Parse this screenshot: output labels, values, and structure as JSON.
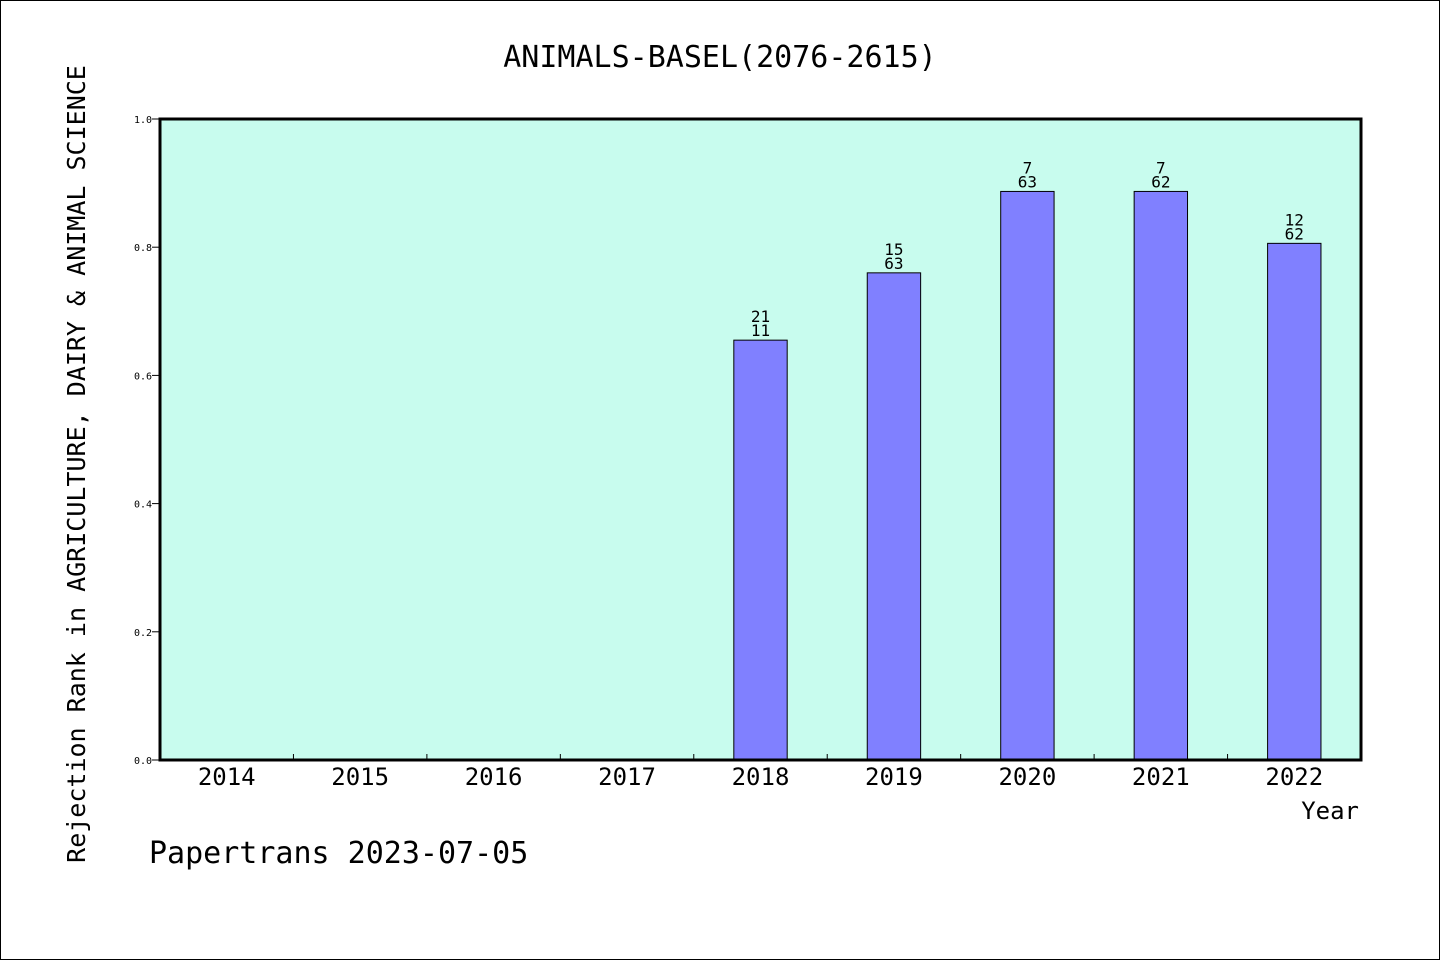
{
  "chart_data": {
    "type": "bar",
    "title": "ANIMALS-BASEL(2076-2615)",
    "xlabel": "Year",
    "ylabel": "Rejection Rank in AGRICULTURE, DAIRY & ANIMAL SCIENCE",
    "categories": [
      "2014",
      "2015",
      "2016",
      "2017",
      "2018",
      "2019",
      "2020",
      "2021",
      "2022"
    ],
    "values": [
      null,
      null,
      null,
      null,
      0.655,
      0.76,
      0.887,
      0.887,
      0.806
    ],
    "bar_labels": [
      null,
      null,
      null,
      null,
      [
        "21",
        "11"
      ],
      [
        "15",
        "63"
      ],
      [
        "7",
        "63"
      ],
      [
        "7",
        "62"
      ],
      [
        "12",
        "62"
      ]
    ],
    "ylim": [
      0,
      1.0
    ],
    "yticks": [
      "0.0",
      "0.2",
      "0.4",
      "0.6",
      "0.8",
      "1.0"
    ],
    "grid": false,
    "colors": {
      "plot_background": "#c8fcee",
      "bar_fill": "#8080ff",
      "bar_stroke": "#000000"
    }
  },
  "footer": "Papertrans 2023-07-05"
}
